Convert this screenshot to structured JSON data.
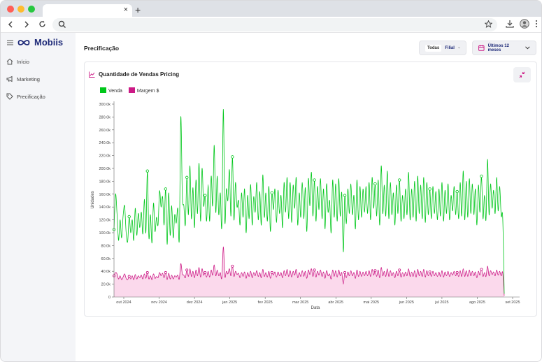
{
  "browser": {
    "new_tab": "+",
    "tab_close": "×"
  },
  "sidebar": {
    "logo": "Mobiis",
    "items": [
      {
        "label": "Início",
        "icon": "home-icon"
      },
      {
        "label": "Marketing",
        "icon": "megaphone-icon"
      },
      {
        "label": "Precificação",
        "icon": "tag-icon"
      }
    ]
  },
  "header": {
    "title": "Precificação",
    "filter_tag": "Todas",
    "filter_label": "Filial",
    "period_label": "Últimos 12 meses"
  },
  "colors": {
    "venda": "#00c71a",
    "margem": "#cc1a86",
    "margem_fill": "#fbd9ec",
    "brand": "#1e2a78"
  },
  "card": {
    "title": "Quantidade de Vendas Pricing"
  },
  "chart_data": {
    "type": "line",
    "title": "Quantidade de Vendas Pricing",
    "xlabel": "Data",
    "ylabel": "Unidades",
    "ylim": [
      0,
      300000
    ],
    "y_ticks": [
      "0",
      "20.0k",
      "40.0k",
      "60.0k",
      "80.0k",
      "100.0k",
      "120.0k",
      "140.0k",
      "160.0k",
      "180.0k",
      "200.0k",
      "220.0k",
      "240.0k",
      "260.0k",
      "280.0k",
      "300.0k"
    ],
    "x_ticks": [
      "out 2024",
      "nov 2024",
      "dez 2024",
      "jan 2025",
      "fev 2025",
      "mar 2025",
      "abr 2025",
      "mai 2025",
      "jun 2025",
      "jul 2025",
      "ago 2025",
      "set 2025"
    ],
    "legend_position": "top-left",
    "series": [
      {
        "name": "Venda",
        "values": [
          105000,
          160000,
          130000,
          88000,
          120000,
          92000,
          126000,
          142000,
          100000,
          86000,
          125000,
          100000,
          120000,
          88000,
          138000,
          96000,
          130000,
          108000,
          132000,
          98000,
          152000,
          100000,
          196000,
          92000,
          128000,
          84000,
          146000,
          102000,
          124000,
          112000,
          165000,
          140000,
          156000,
          112000,
          168000,
          82000,
          162000,
          96000,
          142000,
          92000,
          128000,
          115000,
          138000,
          90000,
          280000,
          156000,
          142000,
          112000,
          186000,
          128000,
          204000,
          122000,
          170000,
          108000,
          182000,
          130000,
          208000,
          118000,
          200000,
          142000,
          158000,
          118000,
          175000,
          118000,
          188000,
          142000,
          236000,
          132000,
          188000,
          128000,
          162000,
          110000,
          292000,
          118000,
          168000,
          150000,
          198000,
          126000,
          218000,
          120000,
          178000,
          140000,
          150000,
          112000,
          162000,
          124000,
          168000,
          100000,
          158000,
          122000,
          175000,
          112000,
          156000,
          132000,
          178000,
          120000,
          164000,
          112000,
          190000,
          124000,
          162000,
          118000,
          172000,
          102000,
          162000,
          136000,
          168000,
          116000,
          166000,
          130000,
          158000,
          108000,
          178000,
          132000,
          186000,
          122000,
          178000,
          116000,
          174000,
          138000,
          186000,
          112000,
          162000,
          124000,
          178000,
          122000,
          170000,
          102000,
          184000,
          142000,
          194000,
          126000,
          182000,
          118000,
          172000,
          136000,
          184000,
          122000,
          168000,
          106000,
          176000,
          132000,
          150000,
          100000,
          182000,
          124000,
          176000,
          118000,
          184000,
          126000,
          162000,
          70000,
          158000,
          114000,
          168000,
          130000,
          176000,
          128000,
          158000,
          106000,
          182000,
          120000,
          172000,
          124000,
          168000,
          132000,
          172000,
          130000,
          178000,
          120000,
          186000,
          138000,
          176000,
          126000,
          182000,
          112000,
          204000,
          130000,
          174000,
          126000,
          196000,
          122000,
          178000,
          128000,
          162000,
          112000,
          174000,
          130000,
          182000,
          118000,
          158000,
          122000,
          168000,
          128000,
          194000,
          120000,
          168000,
          124000,
          180000,
          118000,
          188000,
          130000,
          174000,
          122000,
          186000,
          116000,
          178000,
          128000,
          168000,
          122000,
          172000,
          130000,
          164000,
          120000,
          168000,
          126000,
          178000,
          118000,
          166000,
          130000,
          176000,
          120000,
          158000,
          134000,
          172000,
          128000,
          164000,
          122000,
          178000,
          126000,
          196000,
          120000,
          180000,
          124000,
          184000,
          130000,
          176000,
          128000,
          168000,
          112000,
          174000,
          132000,
          188000,
          122000,
          158000,
          120000,
          214000,
          128000,
          176000,
          138000,
          166000,
          130000,
          186000,
          134000,
          172000,
          126000,
          124000,
          5000
        ],
        "color": "#00c71a"
      },
      {
        "name": "Margem $",
        "values": [
          33000,
          38000,
          36000,
          28000,
          33000,
          27000,
          31000,
          36000,
          29000,
          27000,
          32000,
          28000,
          33000,
          27000,
          35000,
          28000,
          33000,
          30000,
          34000,
          28000,
          36000,
          29000,
          38000,
          28000,
          33000,
          27000,
          36000,
          29000,
          32000,
          30000,
          38000,
          33000,
          37000,
          30000,
          38000,
          27000,
          37000,
          28000,
          34000,
          28000,
          33000,
          31000,
          34000,
          28000,
          52000,
          36000,
          34000,
          30000,
          42000,
          32000,
          44000,
          32000,
          40000,
          30000,
          42000,
          33000,
          46000,
          31000,
          44000,
          34000,
          38000,
          31000,
          40000,
          31000,
          42000,
          34000,
          50000,
          33000,
          42000,
          33000,
          38000,
          30000,
          78000,
          32000,
          40000,
          36000,
          44000,
          33000,
          48000,
          32000,
          40000,
          35000,
          37000,
          30000,
          38000,
          32000,
          39000,
          29000,
          38000,
          32000,
          40000,
          30000,
          38000,
          33000,
          41000,
          32000,
          38000,
          30000,
          43000,
          32000,
          38000,
          31000,
          40000,
          29000,
          38000,
          34000,
          39000,
          31000,
          39000,
          33000,
          38000,
          30000,
          41000,
          33000,
          43000,
          32000,
          41000,
          31000,
          40000,
          34000,
          43000,
          30000,
          38000,
          32000,
          41000,
          32000,
          40000,
          29000,
          42000,
          35000,
          44000,
          32000,
          42000,
          31000,
          40000,
          34000,
          42000,
          32000,
          39000,
          29000,
          41000,
          33000,
          36000,
          28000,
          42000,
          32000,
          41000,
          31000,
          42000,
          33000,
          38000,
          20000,
          38000,
          30000,
          39000,
          33000,
          41000,
          33000,
          38000,
          29000,
          42000,
          32000,
          40000,
          32000,
          39000,
          33000,
          40000,
          33000,
          41000,
          32000,
          43000,
          34000,
          41000,
          32000,
          42000,
          30000,
          46000,
          33000,
          40000,
          32000,
          44000,
          32000,
          41000,
          33000,
          38000,
          30000,
          40000,
          33000,
          42000,
          31000,
          38000,
          32000,
          39000,
          33000,
          44000,
          32000,
          39000,
          32000,
          41000,
          31000,
          43000,
          33000,
          40000,
          32000,
          43000,
          31000,
          41000,
          33000,
          39000,
          32000,
          40000,
          33000,
          38000,
          32000,
          39000,
          32000,
          41000,
          31000,
          39000,
          33000,
          40000,
          32000,
          38000,
          34000,
          40000,
          33000,
          38000,
          32000,
          41000,
          32000,
          44000,
          32000,
          41000,
          32000,
          42000,
          33000,
          40000,
          33000,
          39000,
          30000,
          40000,
          34000,
          43000,
          32000,
          38000,
          32000,
          48000,
          33000,
          41000,
          35000,
          39000,
          33000,
          42000,
          34000,
          40000,
          33000,
          38000,
          2000
        ],
        "color": "#cc1a86"
      }
    ]
  }
}
